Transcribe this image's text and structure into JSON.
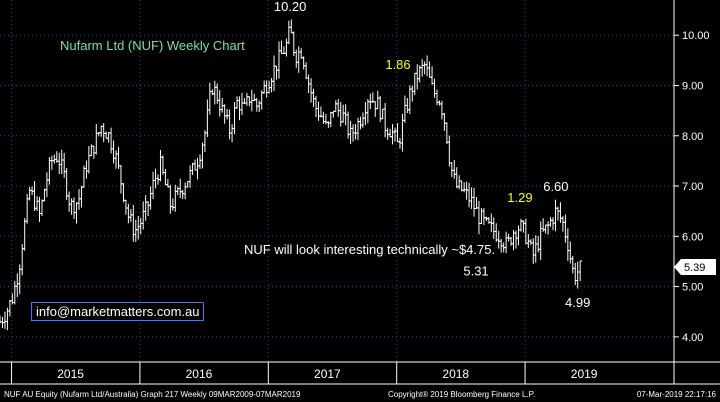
{
  "chart_data": {
    "type": "ohlc",
    "title": "Nufarm Ltd (NUF) Weekly Chart",
    "xlabel": "",
    "ylabel": "",
    "ylim": [
      3.5,
      10.7
    ],
    "xlim": [
      2014.05,
      2019.3
    ],
    "grid": true,
    "y_ticks": [
      "4.00",
      "5.00",
      "6.00",
      "7.00",
      "8.00",
      "9.00",
      "10.00"
    ],
    "x_ticks": [
      {
        "label": "2015",
        "at": 2014.6
      },
      {
        "label": "2016",
        "at": 2015.6
      },
      {
        "label": "2017",
        "at": 2016.6
      },
      {
        "label": "2018",
        "at": 2017.6
      },
      {
        "label": "2019",
        "at": 2018.6
      }
    ],
    "x_dividers": [
      2014.14,
      2015.14,
      2016.14,
      2017.14,
      2018.14
    ],
    "price_path": [
      [
        2014.05,
        4.3
      ],
      [
        2014.1,
        4.5
      ],
      [
        2014.15,
        4.8
      ],
      [
        2014.2,
        5.4
      ],
      [
        2014.24,
        6.2
      ],
      [
        2014.28,
        6.9
      ],
      [
        2014.32,
        6.7
      ],
      [
        2014.36,
        6.4
      ],
      [
        2014.4,
        7.0
      ],
      [
        2014.45,
        7.5
      ],
      [
        2014.5,
        7.6
      ],
      [
        2014.55,
        7.2
      ],
      [
        2014.6,
        6.6
      ],
      [
        2014.66,
        6.7
      ],
      [
        2014.72,
        7.4
      ],
      [
        2014.78,
        7.8
      ],
      [
        2014.84,
        8.2
      ],
      [
        2014.9,
        8.0
      ],
      [
        2014.95,
        7.6
      ],
      [
        2015.0,
        7.0
      ],
      [
        2015.05,
        6.4
      ],
      [
        2015.1,
        6.1
      ],
      [
        2015.15,
        6.3
      ],
      [
        2015.2,
        6.6
      ],
      [
        2015.25,
        7.1
      ],
      [
        2015.3,
        7.4
      ],
      [
        2015.34,
        7.0
      ],
      [
        2015.38,
        6.6
      ],
      [
        2015.45,
        6.9
      ],
      [
        2015.5,
        7.1
      ],
      [
        2015.55,
        7.3
      ],
      [
        2015.6,
        7.6
      ],
      [
        2015.65,
        8.1
      ],
      [
        2015.7,
        9.0
      ],
      [
        2015.74,
        8.8
      ],
      [
        2015.78,
        8.5
      ],
      [
        2015.84,
        8.1
      ],
      [
        2015.9,
        8.7
      ],
      [
        2015.95,
        8.5
      ],
      [
        2016.0,
        8.8
      ],
      [
        2016.05,
        8.6
      ],
      [
        2016.1,
        8.9
      ],
      [
        2016.16,
        9.2
      ],
      [
        2016.22,
        9.5
      ],
      [
        2016.28,
        9.8
      ],
      [
        2016.31,
        10.1
      ],
      [
        2016.35,
        9.6
      ],
      [
        2016.4,
        9.7
      ],
      [
        2016.45,
        9.1
      ],
      [
        2016.5,
        8.6
      ],
      [
        2016.55,
        8.4
      ],
      [
        2016.6,
        8.1
      ],
      [
        2016.65,
        8.6
      ],
      [
        2016.72,
        8.4
      ],
      [
        2016.78,
        8.0
      ],
      [
        2016.85,
        8.3
      ],
      [
        2016.92,
        8.8
      ],
      [
        2017.0,
        8.6
      ],
      [
        2017.05,
        8.2
      ],
      [
        2017.1,
        8.1
      ],
      [
        2017.15,
        7.8
      ],
      [
        2017.2,
        8.4
      ],
      [
        2017.25,
        8.9
      ],
      [
        2017.3,
        9.2
      ],
      [
        2017.36,
        9.4
      ],
      [
        2017.42,
        8.9
      ],
      [
        2017.48,
        8.7
      ],
      [
        2017.52,
        8.2
      ],
      [
        2017.56,
        7.4
      ],
      [
        2017.6,
        7.0
      ],
      [
        2017.66,
        6.9
      ],
      [
        2017.72,
        6.7
      ],
      [
        2017.78,
        6.4
      ],
      [
        2017.84,
        6.2
      ],
      [
        2017.9,
        6.1
      ],
      [
        2017.95,
        6.0
      ],
      [
        2018.0,
        5.8
      ],
      [
        2018.05,
        6.1
      ],
      [
        2018.1,
        6.2
      ],
      [
        2018.15,
        6.0
      ],
      [
        2018.2,
        5.6
      ],
      [
        2018.26,
        6.0
      ],
      [
        2018.32,
        6.2
      ],
      [
        2018.38,
        6.5
      ],
      [
        2018.43,
        6.3
      ],
      [
        2018.47,
        5.9
      ],
      [
        2018.52,
        5.2
      ],
      [
        2018.55,
        5.3
      ],
      [
        2018.58,
        5.39
      ]
    ],
    "last_price": "5.39",
    "annotations": [
      {
        "text": "10.20",
        "x": 2016.31,
        "y": 10.2,
        "color": "#ffffff",
        "position": "above"
      },
      {
        "text": "1.86",
        "x": 2017.15,
        "y": 9.05,
        "color": "#ffff00",
        "position": "above"
      },
      {
        "text": "6.60",
        "x": 2018.38,
        "y": 6.62,
        "color": "#ffffff",
        "position": "above"
      },
      {
        "text": "1.29",
        "x": 2018.1,
        "y": 6.4,
        "color": "#ffff00",
        "position": "above"
      },
      {
        "text": "5.31",
        "x": 2017.95,
        "y": 5.3,
        "color": "#ffffff",
        "position": "left"
      },
      {
        "text": "4.99",
        "x": 2018.55,
        "y": 4.95,
        "color": "#ffffff",
        "position": "below"
      }
    ],
    "colors": {
      "background": "#000000",
      "grid": "#1c4aa0",
      "price": "#ffffff",
      "axis_text": "#ffffff",
      "highlight": "#ffff00",
      "title": "#7fe0a0"
    }
  },
  "overlay": {
    "title": "Nufarm Ltd (NUF) Weekly Chart",
    "message": "NUF will look interesting technically ~$4.75.",
    "email": "info@marketmatters.com.au"
  },
  "footer": {
    "left": "NUF AU Equity (Nufarm Ltd/Australia) Graph 217  Weekly 09MAR2009-07MAR2019",
    "center": "Copyright® 2019 Bloomberg Finance L.P.",
    "right": "07-Mar-2019 22:17:16"
  }
}
